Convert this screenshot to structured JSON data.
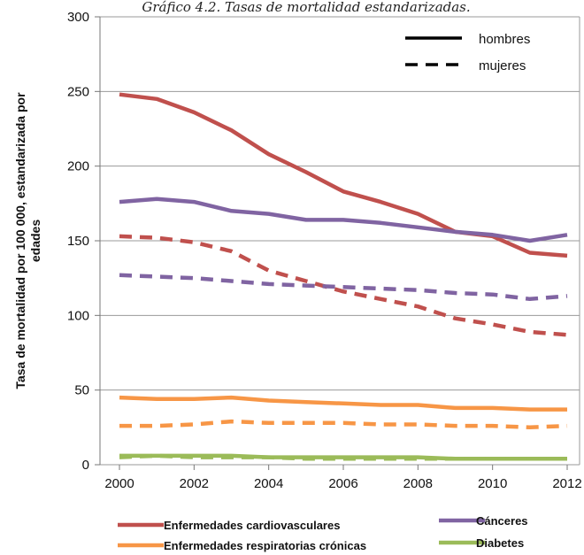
{
  "chart_data": {
    "type": "line",
    "title": "Gráfico 4.2. Tasas de mortalidad estandarizadas.",
    "ylabel": "Tasa de mortalidad por 100 000, estandarizada por edades",
    "xlabel": "",
    "x": [
      2000,
      2001,
      2002,
      2003,
      2004,
      2005,
      2006,
      2007,
      2008,
      2009,
      2010,
      2011,
      2012
    ],
    "x_ticks": [
      "2000",
      "2002",
      "2004",
      "2006",
      "2008",
      "2010",
      "2012"
    ],
    "y_ticks": [
      "0",
      "50",
      "100",
      "150",
      "200",
      "250",
      "300"
    ],
    "ylim": [
      0,
      300
    ],
    "grid": "horizontal",
    "style_legend": [
      {
        "label": "hombres",
        "dash": "solid"
      },
      {
        "label": "mujeres",
        "dash": "dashed"
      }
    ],
    "series": [
      {
        "name": "Enfermedades cardiovasculares",
        "group": "hombres",
        "dash": "solid",
        "color": "#c0504d",
        "values": [
          248,
          245,
          236,
          224,
          208,
          196,
          183,
          176,
          168,
          156,
          153,
          142,
          140
        ]
      },
      {
        "name": "Enfermedades cardiovasculares",
        "group": "mujeres",
        "dash": "dashed",
        "color": "#c0504d",
        "values": [
          153,
          152,
          149,
          143,
          130,
          123,
          116,
          111,
          106,
          98,
          94,
          89,
          87
        ]
      },
      {
        "name": "Cánceres",
        "group": "hombres",
        "dash": "solid",
        "color": "#8064a2",
        "values": [
          176,
          178,
          176,
          170,
          168,
          164,
          164,
          162,
          159,
          156,
          154,
          150,
          154
        ]
      },
      {
        "name": "Cánceres",
        "group": "mujeres",
        "dash": "dashed",
        "color": "#8064a2",
        "values": [
          127,
          126,
          125,
          123,
          121,
          120,
          119,
          118,
          117,
          115,
          114,
          111,
          113
        ]
      },
      {
        "name": "Enfermedades respiratorias crónicas",
        "group": "hombres",
        "dash": "solid",
        "color": "#f79646",
        "values": [
          45,
          44,
          44,
          45,
          43,
          42,
          41,
          40,
          40,
          38,
          38,
          37,
          37
        ]
      },
      {
        "name": "Enfermedades respiratorias crónicas",
        "group": "mujeres",
        "dash": "dashed",
        "color": "#f79646",
        "values": [
          26,
          26,
          27,
          29,
          28,
          28,
          28,
          27,
          27,
          26,
          26,
          25,
          26
        ]
      },
      {
        "name": "Diabetes",
        "group": "hombres",
        "dash": "solid",
        "color": "#9bbb59",
        "values": [
          6,
          6,
          6,
          6,
          5,
          5,
          5,
          5,
          5,
          4,
          4,
          4,
          4
        ]
      },
      {
        "name": "Diabetes",
        "group": "mujeres",
        "dash": "dashed",
        "color": "#9bbb59",
        "values": [
          5,
          6,
          5,
          5,
          5,
          4,
          4,
          4,
          4,
          4,
          4,
          4,
          4
        ]
      }
    ],
    "legend": [
      {
        "label": "Enfermedades cardiovasculares",
        "color": "#c0504d"
      },
      {
        "label": "Cánceres",
        "color": "#8064a2"
      },
      {
        "label": "Enfermedades respiratorias crónicas",
        "color": "#f79646"
      },
      {
        "label": "Diabetes",
        "color": "#9bbb59"
      }
    ]
  }
}
